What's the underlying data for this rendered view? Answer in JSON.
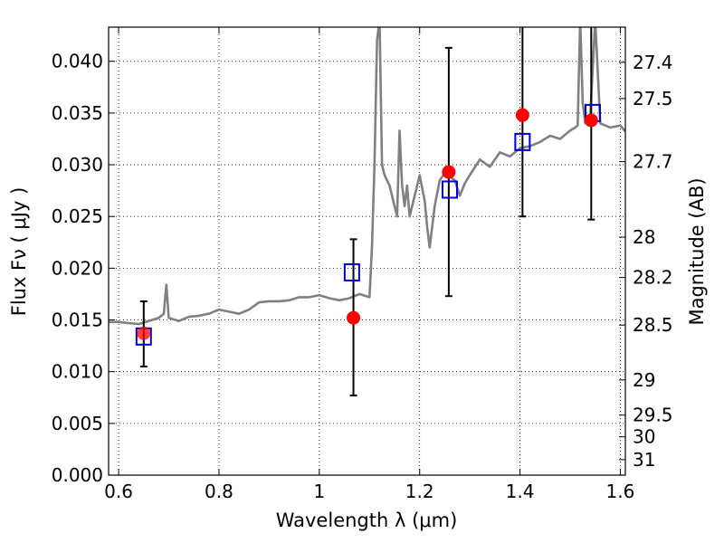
{
  "chart_data": {
    "type": "scatter",
    "xlabel": "Wavelength  λ (μm)",
    "ylabel": "Flux  Fν  ( μJy )",
    "ylabel_right": "Magnitude (AB)",
    "xlim": [
      0.58,
      1.61
    ],
    "ylim": [
      0.0,
      0.0433
    ],
    "grid": true,
    "x_ticks": [
      0.6,
      0.8,
      1.0,
      1.2,
      1.4,
      1.6
    ],
    "x_tick_labels": [
      "0.6",
      "0.8",
      "1",
      "1.2",
      "1.4",
      "1.6"
    ],
    "y_ticks": [
      0.0,
      0.005,
      0.01,
      0.015,
      0.02,
      0.025,
      0.03,
      0.035,
      0.04
    ],
    "y_tick_labels": [
      "0.000",
      "0.005",
      "0.010",
      "0.015",
      "0.020",
      "0.025",
      "0.030",
      "0.035",
      "0.040"
    ],
    "right_ticks": [
      {
        "label": "27.4",
        "flux": 0.0399
      },
      {
        "label": "27.5",
        "flux": 0.0364
      },
      {
        "label": "27.7",
        "flux": 0.0303
      },
      {
        "label": "28",
        "flux": 0.023
      },
      {
        "label": "28.2",
        "flux": 0.0191
      },
      {
        "label": "28.5",
        "flux": 0.0145
      },
      {
        "label": "29",
        "flux": 0.0092
      },
      {
        "label": "29.5",
        "flux": 0.0058
      },
      {
        "label": "30",
        "flux": 0.0037
      },
      {
        "label": "31",
        "flux": 0.0015
      }
    ],
    "model_spectrum": {
      "color": "#808080",
      "x": [
        0.58,
        0.6,
        0.62,
        0.64,
        0.66,
        0.68,
        0.69,
        0.695,
        0.7,
        0.72,
        0.74,
        0.76,
        0.78,
        0.8,
        0.82,
        0.84,
        0.86,
        0.88,
        0.9,
        0.92,
        0.94,
        0.96,
        0.98,
        1.0,
        1.02,
        1.04,
        1.06,
        1.08,
        1.1,
        1.105,
        1.11,
        1.115,
        1.12,
        1.125,
        1.13,
        1.14,
        1.15,
        1.155,
        1.16,
        1.165,
        1.17,
        1.175,
        1.18,
        1.19,
        1.2,
        1.21,
        1.215,
        1.22,
        1.23,
        1.24,
        1.25,
        1.27,
        1.28,
        1.29,
        1.3,
        1.32,
        1.34,
        1.36,
        1.38,
        1.4,
        1.42,
        1.44,
        1.46,
        1.48,
        1.5,
        1.51,
        1.515,
        1.52,
        1.525,
        1.53,
        1.54,
        1.55,
        1.56,
        1.58,
        1.6,
        1.61
      ],
      "y": [
        0.0148,
        0.0148,
        0.0147,
        0.0146,
        0.0149,
        0.0152,
        0.0156,
        0.0184,
        0.0152,
        0.0149,
        0.0153,
        0.0154,
        0.0156,
        0.016,
        0.0158,
        0.0156,
        0.016,
        0.0167,
        0.0168,
        0.0168,
        0.0169,
        0.0172,
        0.0172,
        0.0174,
        0.0171,
        0.0169,
        0.0171,
        0.0175,
        0.0172,
        0.022,
        0.03,
        0.042,
        0.044,
        0.03,
        0.029,
        0.028,
        0.026,
        0.025,
        0.0333,
        0.028,
        0.026,
        0.028,
        0.025,
        0.027,
        0.029,
        0.0265,
        0.024,
        0.022,
        0.026,
        0.0285,
        0.0292,
        0.0285,
        0.027,
        0.0282,
        0.029,
        0.0305,
        0.0298,
        0.0312,
        0.0308,
        0.0316,
        0.0318,
        0.0322,
        0.0328,
        0.0325,
        0.0333,
        0.0336,
        0.0338,
        0.044,
        0.036,
        0.034,
        0.0347,
        0.044,
        0.034,
        0.0336,
        0.0338,
        0.0332
      ]
    },
    "series": [
      {
        "marker": "open-square",
        "color": "#0000cc",
        "x": [
          0.65,
          1.065,
          1.26,
          1.405,
          1.545
        ],
        "y": [
          0.0134,
          0.0196,
          0.0276,
          0.0322,
          0.035
        ]
      },
      {
        "marker": "filled-circle",
        "color": "#ff0000",
        "x": [
          0.65,
          1.068,
          1.258,
          1.405,
          1.542
        ],
        "y": [
          0.0137,
          0.0152,
          0.0293,
          0.0348,
          0.0343
        ],
        "err_low": [
          0.0105,
          0.0077,
          0.0173,
          0.025,
          0.0247
        ],
        "err_high": [
          0.0168,
          0.0228,
          0.0413,
          0.0433,
          0.0433
        ]
      }
    ]
  }
}
